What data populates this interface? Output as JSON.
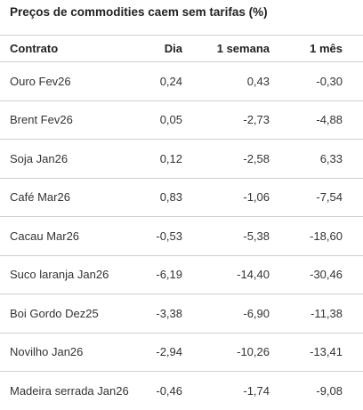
{
  "title": "Preços de commodities caem sem tarifas (%)",
  "table": {
    "headers": [
      "Contrato",
      "Dia",
      "1 semana",
      "1 mês"
    ],
    "rows": [
      [
        "Ouro Fev26",
        "0,24",
        "0,43",
        "-0,30"
      ],
      [
        "Brent Fev26",
        "0,05",
        "-2,73",
        "-4,88"
      ],
      [
        "Soja Jan26",
        "0,12",
        "-2,58",
        "6,33"
      ],
      [
        "Café Mar26",
        "0,83",
        "-1,06",
        "-7,54"
      ],
      [
        "Cacau Mar26",
        "-0,53",
        "-5,38",
        "-18,60"
      ],
      [
        "Suco laranja Jan26",
        "-6,19",
        "-14,40",
        "-30,46"
      ],
      [
        "Boi Gordo Dez25",
        "-3,38",
        "-6,90",
        "-11,38"
      ],
      [
        "Novilho Jan26",
        "-2,94",
        "-10,26",
        "-13,41"
      ],
      [
        "Madeira serrada Jan26",
        "-0,46",
        "-1,74",
        "-9,08"
      ]
    ]
  }
}
